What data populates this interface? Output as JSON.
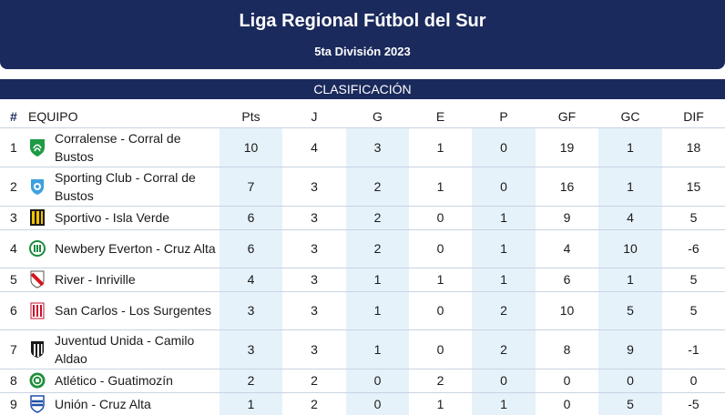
{
  "header": {
    "title": "Liga Regional Fútbol del Sur",
    "subtitle": "5ta División 2023"
  },
  "section": {
    "title": "CLASIFICACIÓN"
  },
  "table": {
    "columns": [
      "#",
      "EQUIPO",
      "Pts",
      "J",
      "G",
      "E",
      "P",
      "GF",
      "GC",
      "DIF"
    ],
    "rows": [
      {
        "pos": "1",
        "team": "Corralense - Corral de Bustos",
        "pts": "10",
        "j": "4",
        "g": "3",
        "e": "1",
        "p": "0",
        "gf": "19",
        "gc": "1",
        "dif": "18",
        "crest": "crest-green-shield-icon"
      },
      {
        "pos": "2",
        "team": "Sporting Club - Corral de Bustos",
        "pts": "7",
        "j": "3",
        "g": "2",
        "e": "1",
        "p": "0",
        "gf": "16",
        "gc": "1",
        "dif": "15",
        "crest": "crest-lightblue-badge-icon"
      },
      {
        "pos": "3",
        "team": "Sportivo - Isla Verde",
        "pts": "6",
        "j": "3",
        "g": "2",
        "e": "0",
        "p": "1",
        "gf": "9",
        "gc": "4",
        "dif": "5",
        "crest": "crest-yellow-black-stripes-icon"
      },
      {
        "pos": "4",
        "team": "Newbery Everton - Cruz Alta",
        "pts": "6",
        "j": "3",
        "g": "2",
        "e": "0",
        "p": "1",
        "gf": "4",
        "gc": "10",
        "dif": "-6",
        "crest": "crest-green-white-circle-icon"
      },
      {
        "pos": "5",
        "team": "River - Inriville",
        "pts": "4",
        "j": "3",
        "g": "1",
        "e": "1",
        "p": "1",
        "gf": "6",
        "gc": "1",
        "dif": "5",
        "crest": "crest-red-sash-icon"
      },
      {
        "pos": "6",
        "team": "San Carlos - Los Surgentes",
        "pts": "3",
        "j": "3",
        "g": "1",
        "e": "0",
        "p": "2",
        "gf": "10",
        "gc": "5",
        "dif": "5",
        "crest": "crest-red-white-stripes-icon"
      },
      {
        "pos": "7",
        "team": "Juventud Unida - Camilo Aldao",
        "pts": "3",
        "j": "3",
        "g": "1",
        "e": "0",
        "p": "2",
        "gf": "8",
        "gc": "9",
        "dif": "-1",
        "crest": "crest-black-white-stripes-icon"
      },
      {
        "pos": "8",
        "team": "Atlético - Guatimozín",
        "pts": "2",
        "j": "2",
        "g": "0",
        "e": "2",
        "p": "0",
        "gf": "0",
        "gc": "0",
        "dif": "0",
        "crest": "crest-green-circle-icon"
      },
      {
        "pos": "9",
        "team": "Unión - Cruz Alta",
        "pts": "1",
        "j": "2",
        "g": "0",
        "e": "1",
        "p": "1",
        "gf": "0",
        "gc": "5",
        "dif": "-5",
        "crest": "crest-blue-white-shield-icon"
      }
    ]
  },
  "colors": {
    "header_bg": "#1b2a5c",
    "shade": "#e6f2fa",
    "divider": "#c9d3e2"
  }
}
